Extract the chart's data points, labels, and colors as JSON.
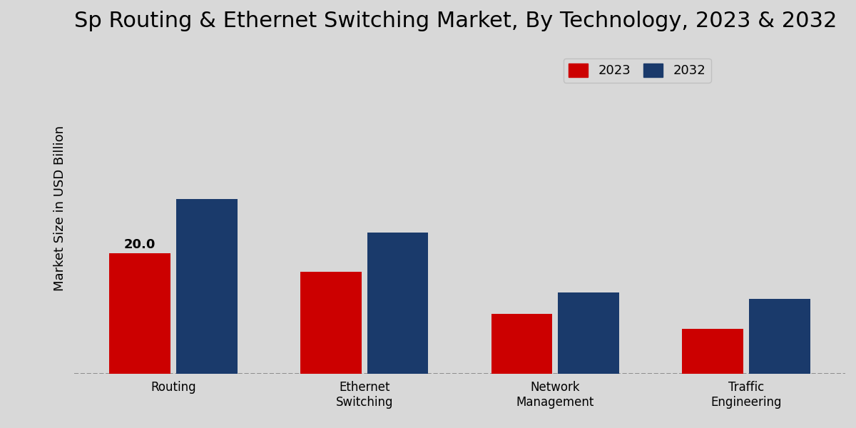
{
  "title": "Sp Routing & Ethernet Switching Market, By Technology, 2023 & 2032",
  "ylabel": "Market Size in USD Billion",
  "categories": [
    "Routing",
    "Ethernet\nSwitching",
    "Network\nManagement",
    "Traffic\nEngineering"
  ],
  "values_2023": [
    20.0,
    17.0,
    10.0,
    7.5
  ],
  "values_2032": [
    29.0,
    23.5,
    13.5,
    12.5
  ],
  "color_2023": "#cc0000",
  "color_2032": "#1a3a6b",
  "bar_label_routing_2023": "20.0",
  "ylim": [
    0,
    55
  ],
  "legend_labels": [
    "2023",
    "2032"
  ],
  "title_fontsize": 22,
  "label_fontsize": 13,
  "tick_fontsize": 12,
  "bg_color": "#d8d8d8",
  "bar_width": 0.32
}
